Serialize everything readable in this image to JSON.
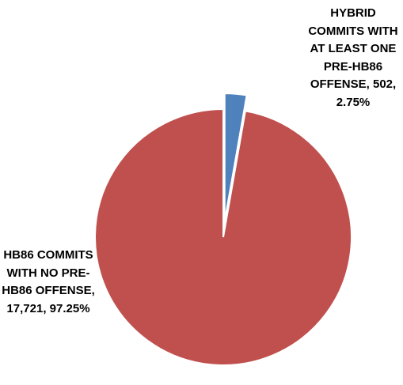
{
  "chart_data": {
    "type": "pie",
    "title": "",
    "slices": [
      {
        "label": "HYBRID COMMITS WITH AT LEAST ONE PRE-HB86 OFFENSE, 502, 2.75%",
        "value": 502,
        "percent": 2.75,
        "color": "#4F81BD",
        "exploded": true
      },
      {
        "label": "HB86 COMMITS WITH NO PRE-HB86 OFFENSE, 17,721, 97.25%",
        "value": 17721,
        "percent": 97.25,
        "color": "#C0504D",
        "exploded": false
      }
    ],
    "start_angle": "12 o'clock",
    "direction": "clockwise",
    "legend": "none"
  }
}
